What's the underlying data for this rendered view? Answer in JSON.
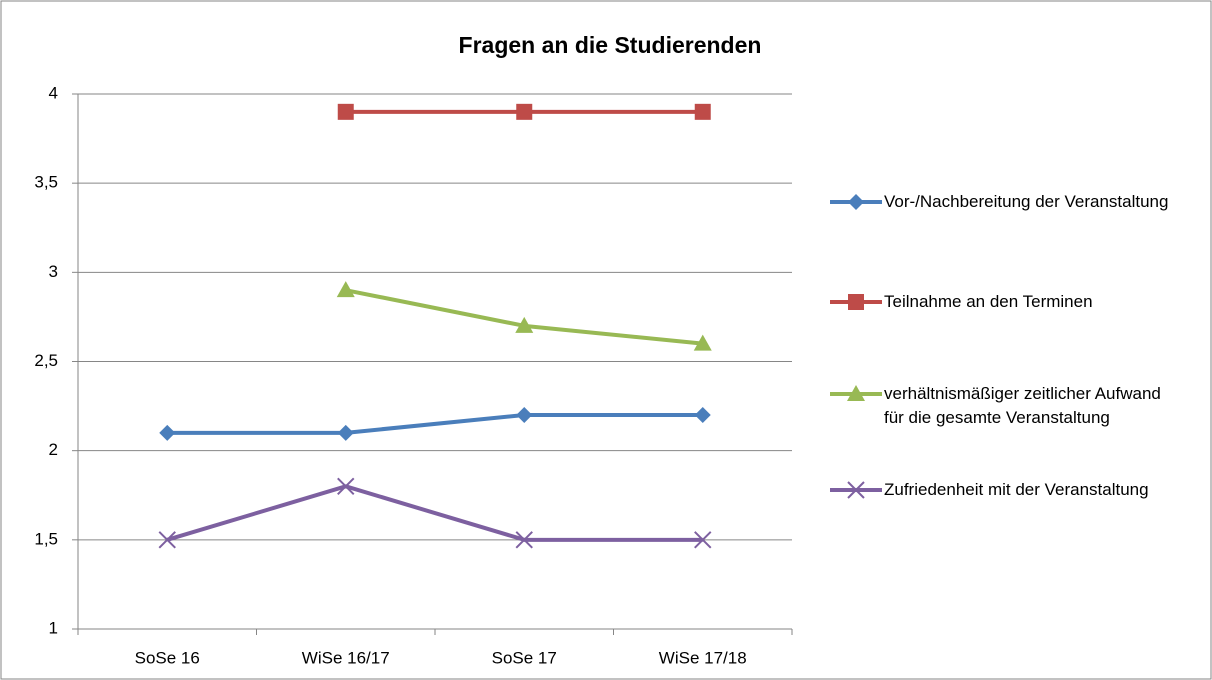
{
  "chart_data": {
    "type": "line",
    "title": "Fragen an die Studierenden",
    "categories": [
      "SoSe 16",
      "WiSe 16/17",
      "SoSe 17",
      "WiSe 17/18"
    ],
    "series": [
      {
        "name": "Vor-/Nachbereitung der Veranstaltung",
        "color": "#4a7ebb",
        "marker": "diamond",
        "values": [
          2.1,
          2.1,
          2.2,
          2.2
        ]
      },
      {
        "name": "Teilnahme an den Terminen",
        "color": "#be4b48",
        "marker": "square",
        "values": [
          null,
          3.9,
          3.9,
          3.9
        ]
      },
      {
        "name": "verhältnismäßiger zeitlicher Aufwand für die gesamte Veranstaltung",
        "color": "#98b954",
        "marker": "triangle",
        "values": [
          null,
          2.9,
          2.7,
          2.6
        ]
      },
      {
        "name": "Zufriedenheit mit der Veranstaltung",
        "color": "#7d60a0",
        "marker": "x",
        "values": [
          1.5,
          1.8,
          1.5,
          1.5
        ]
      }
    ],
    "ylim": [
      1,
      4
    ],
    "yticks": [
      1,
      {
        "value": 1.5,
        "label": "1,5"
      },
      2,
      {
        "value": 2.5,
        "label": "2,5"
      },
      3,
      {
        "value": 3.5,
        "label": "3,5"
      },
      4
    ],
    "grid": true,
    "legend": "right"
  }
}
